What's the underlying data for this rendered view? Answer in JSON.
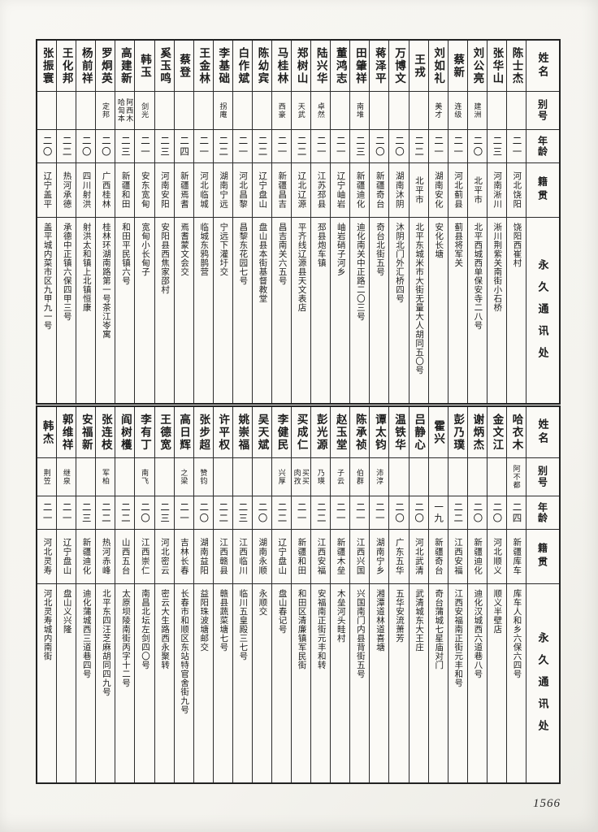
{
  "page_number": "1566",
  "headers": {
    "name": "姓名",
    "alias": "别号",
    "age": "年龄",
    "native": "籍贯",
    "address": "永久通讯处"
  },
  "tables": [
    {
      "people": [
        {
          "name": "陈士杰",
          "alias": "",
          "age": "二一",
          "native": "河北饶阳",
          "address": "饶阳西崔村"
        },
        {
          "name": "张华山",
          "alias": "",
          "age": "二三",
          "native": "河南淅川",
          "address": "淅川荆紫关南街小石桥"
        },
        {
          "name": "刘公亮",
          "alias": "建洲",
          "age": "二〇",
          "native": "北平市",
          "address": "北平西城西单保安寺二八号"
        },
        {
          "name": "蔡新",
          "alias": "连级",
          "age": "二一",
          "native": "河北蓟县",
          "address": "蓟县将军关"
        },
        {
          "name": "刘如礼",
          "alias": "美才",
          "age": "二一",
          "native": "湖南安化",
          "address": "安化长塘"
        },
        {
          "name": "王戎",
          "alias": "",
          "age": "二二",
          "native": "北平市",
          "address": "北平东城米市大街无量大人胡同五〇号"
        },
        {
          "name": "万博文",
          "alias": "",
          "age": "二〇",
          "native": "湖南沐阴",
          "address": "沐阴北门外汇桥四号"
        },
        {
          "name": "蒋泽平",
          "alias": "",
          "age": "二〇",
          "native": "新疆奇台",
          "address": "奇台北街五号"
        },
        {
          "name": "田肇祥",
          "alias": "南堆",
          "age": "二三",
          "native": "新疆迪化",
          "address": "迪化南关中正路二〇三号"
        },
        {
          "name": "董鸿志",
          "alias": "",
          "age": "二一",
          "native": "辽宁岫岩",
          "address": "岫岩硝子河乡"
        },
        {
          "name": "陆兴华",
          "alias": "卓然",
          "age": "二一",
          "native": "江苏邳县",
          "address": "邳县炮车镇"
        },
        {
          "name": "郑树山",
          "alias": "天武",
          "age": "二二",
          "native": "辽北辽源",
          "address": "平齐线辽源县天文表店"
        },
        {
          "name": "马桂林",
          "alias": "西豪",
          "age": "二一",
          "native": "新疆昌吉",
          "address": "昌吉南关六五号"
        },
        {
          "name": "陈幼宾",
          "alias": "",
          "age": "二二",
          "native": "辽宁盘山",
          "address": "盘山县本街基督教堂"
        },
        {
          "name": "白作斌",
          "alias": "",
          "age": "二一",
          "native": "河北昌黎",
          "address": "昌黎东花园七号"
        },
        {
          "name": "李基础",
          "alias": "拐庵",
          "age": "二二",
          "native": "湖南宁远",
          "address": "宁远下灌圩交"
        },
        {
          "name": "王金林",
          "alias": "",
          "age": "二一",
          "native": "河北临城",
          "address": "临城东鸦鹊营"
        },
        {
          "name": "蔡登",
          "alias": "",
          "age": "二四",
          "native": "新疆焉耆",
          "address": "焉耆蒙文会交"
        },
        {
          "name": "奚玉鸣",
          "alias": "",
          "age": "二三",
          "native": "河南安阳",
          "address": "安阳县西焦家邵村"
        },
        {
          "name": "韩玉",
          "alias": "剑光",
          "age": "二一",
          "native": "安东宽甸",
          "address": "宽甸小长甸子"
        },
        {
          "name": "高建新",
          "alias": "阿西木\n哈訇本",
          "age": "二三",
          "native": "新疆和田",
          "address": "和田平民镇六号"
        },
        {
          "name": "罗炯英",
          "alias": "定邦",
          "age": "二〇",
          "native": "广西桂林",
          "address": "桂林环湖南路第一号茶江岺寓"
        },
        {
          "name": "杨前祥",
          "alias": "",
          "age": "二〇",
          "native": "四川射洪",
          "address": "射洪太和镇上北镇恒康"
        },
        {
          "name": "王化邦",
          "alias": "",
          "age": "二二",
          "native": "热河承德",
          "address": "承德中正镇六保四甲三号"
        },
        {
          "name": "张振寰",
          "alias": "",
          "age": "二〇",
          "native": "辽宁盖平",
          "address": "盖平城内菜市区九甲九一号"
        }
      ]
    },
    {
      "people": [
        {
          "name": "哈衣木",
          "alias": "阿不都",
          "age": "二四",
          "native": "新疆库车",
          "address": "库车人和乡六保六四号"
        },
        {
          "name": "金文江",
          "alias": "",
          "age": "二〇",
          "native": "河北顺义",
          "address": "顺义半壁店"
        },
        {
          "name": "谢炳杰",
          "alias": "",
          "age": "二〇",
          "native": "新疆迪化",
          "address": "迪化汉城西六道巷八号"
        },
        {
          "name": "彭乃璞",
          "alias": "",
          "age": "二二",
          "native": "江西安福",
          "address": "江西安福南正街元丰和号"
        },
        {
          "name": "霍兴",
          "alias": "",
          "age": "一九",
          "native": "新疆奇台",
          "address": "奇台蒲城七星庙对门"
        },
        {
          "name": "吕静心",
          "alias": "",
          "age": "二〇",
          "native": "河北武清",
          "address": "武清城东大王庄"
        },
        {
          "name": "温铁华",
          "alias": "",
          "age": "二〇",
          "native": "广东五华",
          "address": "五华安流萧芳"
        },
        {
          "name": "谭太钧",
          "alias": "沛淳",
          "age": "二一",
          "native": "湖南宁乡",
          "address": "湘潭道林道喜塘"
        },
        {
          "name": "陈承祯",
          "alias": "伯群",
          "age": "二一",
          "native": "江西兴国",
          "address": "兴国南门内县背街五号"
        },
        {
          "name": "赵玉堂",
          "alias": "子云",
          "age": "二一",
          "native": "新疆木垒",
          "address": "木垒河头畦村"
        },
        {
          "name": "彭光源",
          "alias": "乃瑛",
          "age": "二二",
          "native": "江西安福",
          "address": "安福南正街元丰和转"
        },
        {
          "name": "买成仁",
          "alias": "买买\n肉孜",
          "age": "二一",
          "native": "新疆和田",
          "address": "和田区清廉镇军民街"
        },
        {
          "name": "李健民",
          "alias": "兴厚",
          "age": "二二",
          "native": "辽宁盘山",
          "address": "盘山春记号"
        },
        {
          "name": "吴天斌",
          "alias": "",
          "age": "二〇",
          "native": "湖南永顺",
          "address": "永顺交"
        },
        {
          "name": "姚崇福",
          "alias": "",
          "age": "二三",
          "native": "江西临川",
          "address": "临川五皇殿三七号"
        },
        {
          "name": "许平权",
          "alias": "",
          "age": "二二",
          "native": "江西赣县",
          "address": "赣县蔬菜塘七号"
        },
        {
          "name": "张步超",
          "alias": "赞钧",
          "age": "二〇",
          "native": "湖南益阳",
          "address": "益阳珠波塘邮交"
        },
        {
          "name": "高日辉",
          "alias": "之梁",
          "age": "二一",
          "native": "吉林长春",
          "address": "长春市和顺区东站特官舍街九号"
        },
        {
          "name": "王德宽",
          "alias": "",
          "age": "二三",
          "native": "河北密云",
          "address": "密云大生路西永聚转"
        },
        {
          "name": "李有丁",
          "alias": "南飞",
          "age": "二〇",
          "native": "江西崇仁",
          "address": "南昌北坛左剑四〇号"
        },
        {
          "name": "阎树檴",
          "alias": "",
          "age": "二二",
          "native": "山西五台",
          "address": "太原坝陵南街丙字十二号"
        },
        {
          "name": "张连枝",
          "alias": "军柏",
          "age": "二二",
          "native": "热河赤峰",
          "address": "北平东四汪芝麻胡同四九号"
        },
        {
          "name": "安福新",
          "alias": "",
          "age": "二三",
          "native": "新疆迪化",
          "address": "迪化蒲城西三道巷四号"
        },
        {
          "name": "郭维祥",
          "alias": "继泉",
          "age": "二一",
          "native": "辽宁盘山",
          "address": "盘山义兴隆"
        },
        {
          "name": "韩杰",
          "alias": "荆笠",
          "age": "二一",
          "native": "河北灵寿",
          "address": "河北灵寿城内南街"
        }
      ]
    }
  ]
}
